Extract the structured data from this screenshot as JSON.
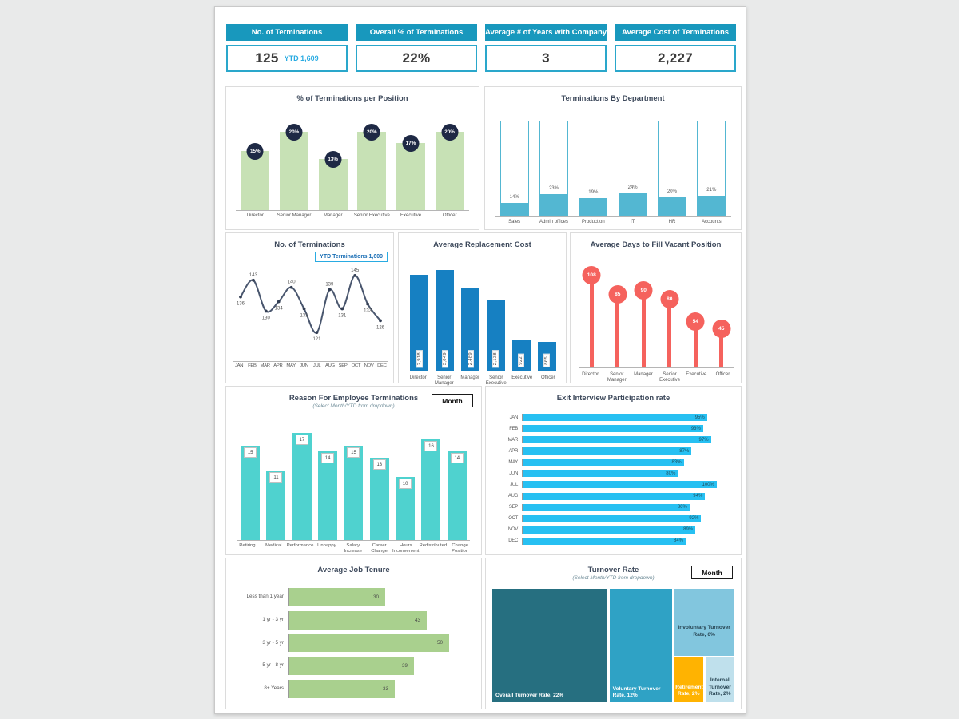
{
  "colors": {
    "kpi_header_bg": "#1898bd",
    "kpi_border": "#2aa7cb",
    "kpi_ytd_text": "#29abe2",
    "green_bar": "#c7e1b5",
    "navy_label": "#1e2945",
    "dept_teal": "#53b7d2",
    "line_stroke": "#49566e",
    "blue_bar": "#1680c2",
    "coral": "#f5625d",
    "turquoise_bar": "#4fd2cf",
    "cyan_bar": "#27c0f2",
    "tenure_green": "#a9d08e"
  },
  "kpis": [
    {
      "title": "No. of Terminations",
      "value": "125",
      "ytd": "YTD 1,609"
    },
    {
      "title": "Overall % of Terminations",
      "value": "22%"
    },
    {
      "title": "Average # of Years with Company",
      "value": "3"
    },
    {
      "title": "Average Cost of Terminations",
      "value": "2,227"
    }
  ],
  "chart_data": [
    {
      "id": "pct_terminations_per_position",
      "type": "bar",
      "title": "% of Terminations per Position",
      "categories": [
        "Director",
        "Senior Manager",
        "Manager",
        "Senior Executive",
        "Executive",
        "Officer"
      ],
      "values": [
        15,
        20,
        13,
        20,
        17,
        20
      ],
      "labels": [
        "15%",
        "20%",
        "13%",
        "20%",
        "17%",
        "20%"
      ],
      "ylim": [
        0,
        24
      ],
      "bar_color": "#c7e1b5",
      "label_badge_color": "#1e2945"
    },
    {
      "id": "terminations_by_department",
      "type": "bar",
      "subtype": "thermometer",
      "title": "Terminations By Department",
      "categories": [
        "Sales",
        "Admin offices",
        "Production",
        "IT",
        "HR",
        "Accounts"
      ],
      "values": [
        14,
        23,
        19,
        24,
        20,
        21
      ],
      "labels": [
        "14%",
        "23%",
        "19%",
        "24%",
        "20%",
        "21%"
      ],
      "ylim": [
        0,
        100
      ],
      "bar_color": "#53b7d2"
    },
    {
      "id": "no_of_terminations_monthly",
      "type": "line",
      "title": "No. of Terminations",
      "badge": "YTD Terminations 1,609",
      "x": [
        "JAN",
        "FEB",
        "MAR",
        "APR",
        "MAY",
        "JUN",
        "JUL",
        "AUG",
        "SEP",
        "OCT",
        "NOV",
        "DEC"
      ],
      "values": [
        136,
        143,
        130,
        134,
        140,
        131,
        121,
        139,
        131,
        145,
        133,
        126
      ],
      "ylim": [
        115,
        150
      ],
      "line_color": "#49566e"
    },
    {
      "id": "average_replacement_cost",
      "type": "bar",
      "title": "Average Replacement Cost",
      "categories": [
        "Director",
        "Senior Manager",
        "Manager",
        "Senior Executive",
        "Executive",
        "Officer"
      ],
      "values": [
        2918,
        3049,
        2489,
        2138,
        922,
        865
      ],
      "labels": [
        "2,918",
        "3,049",
        "2,489",
        "2,138",
        "922",
        "865"
      ],
      "ylim": [
        0,
        3200
      ],
      "bar_color": "#1680c2"
    },
    {
      "id": "average_days_to_fill_vacant_position",
      "type": "lollipop",
      "title": "Average Days to Fill Vacant Position",
      "categories": [
        "Director",
        "Senior Manager",
        "Manager",
        "Senior Executive",
        "Executive",
        "Officer"
      ],
      "values": [
        108,
        85,
        90,
        80,
        54,
        45
      ],
      "ylim": [
        0,
        115
      ],
      "color": "#f5625d"
    },
    {
      "id": "reason_for_employee_terminations",
      "type": "bar",
      "title": "Reason For Employee Terminations",
      "subtitle": "(Select Month/YTD from dropdown)",
      "control_label": "Month",
      "categories": [
        "Retiring",
        "Medical",
        "Performance",
        "Unhappy",
        "Salary Increase",
        "Career Change",
        "Hours Inconvenient",
        "Redistributed",
        "Change Position"
      ],
      "values": [
        15,
        11,
        17,
        14,
        15,
        13,
        10,
        16,
        14
      ],
      "ylim": [
        0,
        19
      ],
      "bar_color": "#4fd2cf"
    },
    {
      "id": "exit_interview_participation_rate",
      "type": "bar-horizontal",
      "title": "Exit Interview Participation rate",
      "categories": [
        "JAN",
        "FEB",
        "MAR",
        "APR",
        "MAY",
        "JUN",
        "JUL",
        "AUG",
        "SEP",
        "OCT",
        "NOV",
        "DEC"
      ],
      "values": [
        95,
        93,
        97,
        87,
        83,
        80,
        100,
        94,
        86,
        92,
        89,
        84
      ],
      "labels": [
        "95%",
        "93%",
        "97%",
        "87%",
        "83%",
        "80%",
        "100%",
        "94%",
        "86%",
        "92%",
        "89%",
        "84%"
      ],
      "xlim": [
        0,
        105
      ],
      "bar_color": "#27c0f2"
    },
    {
      "id": "average_job_tenure",
      "type": "bar-horizontal",
      "title": "Average Job Tenure",
      "categories": [
        "Less than 1 year",
        "1 yr - 3 yr",
        "3 yr - 5 yr",
        "5 yr - 8 yr",
        "8+ Years"
      ],
      "values": [
        30,
        43,
        50,
        39,
        33
      ],
      "xlim": [
        0,
        56
      ],
      "bar_color": "#a9d08e"
    },
    {
      "id": "turnover_rate",
      "type": "treemap",
      "title": "Turnover Rate",
      "subtitle": "(Select Month/YTD from dropdown)",
      "control_label": "Month",
      "cells": [
        {
          "label": "Overall Turnover Rate, 22%",
          "value": 22,
          "color": "#266f80",
          "text_color": "#ffffff"
        },
        {
          "label": "Voluntary Turnover Rate, 12%",
          "value": 12,
          "color": "#2fa2c5",
          "text_color": "#ffffff"
        },
        {
          "label": "Involuntary Turnover Rate, 6%",
          "value": 6,
          "color": "#82c6de",
          "text_color": "#274452"
        },
        {
          "label": "Retirement Rate, 2%",
          "value": 2,
          "color": "#ffb301",
          "text_color": "#ffffff"
        },
        {
          "label": "Internal Turnover Rate, 2%",
          "value": 2,
          "color": "#bfe0ec",
          "text_color": "#274452"
        }
      ]
    }
  ]
}
